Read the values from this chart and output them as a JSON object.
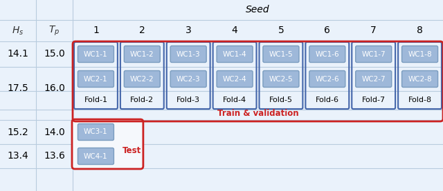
{
  "fig_bg": "#eaf2fb",
  "table_bg": "#ddeaf7",
  "wc_box_bg": "#9eb8d9",
  "wc_box_border": "#7a9cbf",
  "fold_col_border": "#4466aa",
  "train_border_color": "#cc2222",
  "test_border_color": "#cc2222",
  "test_box_inner_bg": "#f5f8fc",
  "line_color": "#b8ccde",
  "hs_values": [
    "14.1",
    "17.5",
    "15.2",
    "13.4"
  ],
  "tp_values": [
    "15.0",
    "16.0",
    "14.0",
    "13.6"
  ],
  "seeds": [
    "1",
    "2",
    "3",
    "4",
    "5",
    "6",
    "7",
    "8"
  ],
  "wc_labels_row1": [
    "WC1-1",
    "WC1-2",
    "WC1-3",
    "WC1-4",
    "WC1-5",
    "WC1-6",
    "WC1-7",
    "WC1-8"
  ],
  "wc_labels_row2": [
    "WC2-1",
    "WC2-2",
    "WC2-3",
    "WC2-4",
    "WC2-5",
    "WC2-6",
    "WC2-7",
    "WC2-8"
  ],
  "fold_labels": [
    "Fold-1",
    "Fold-2",
    "Fold-3",
    "Fold-4",
    "Fold-5",
    "Fold-6",
    "Fold-7",
    "Fold-8"
  ],
  "wc_labels_test": [
    "WC3-1",
    "WC4-1"
  ],
  "train_label": "Train & validation",
  "test_label": "Test",
  "seed_label": "Seed",
  "hs_label": "$H_s$",
  "tp_label": "$T_p$"
}
